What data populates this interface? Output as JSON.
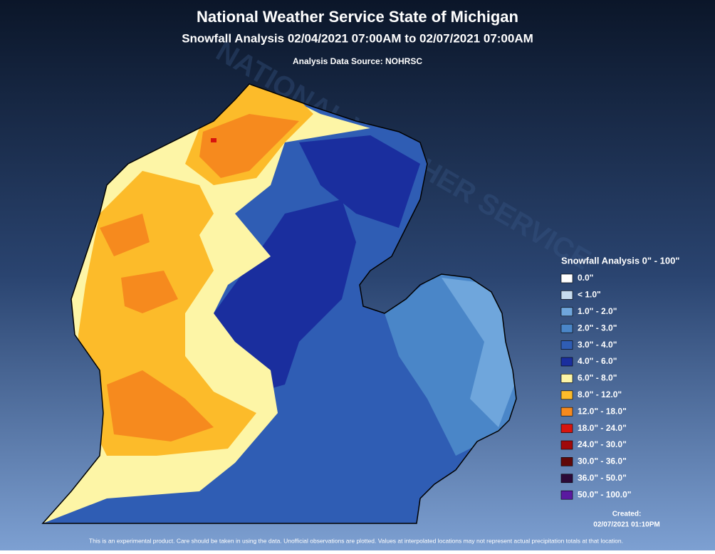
{
  "header": {
    "title": "National Weather Service State of Michigan",
    "subtitle": "Snowfall Analysis 02/04/2021 07:00AM to 02/07/2021 07:00AM",
    "source": "Analysis Data Source: NOHRSC"
  },
  "watermark": "NATIONAL WEATHER SERVICE",
  "legend": {
    "title": "Snowfall Analysis 0\" - 100\"",
    "items": [
      {
        "label": "0.0\"",
        "color": "#ffffff"
      },
      {
        "label": "< 1.0\"",
        "color": "#c8dcee"
      },
      {
        "label": "1.0\" - 2.0\"",
        "color": "#6fa6dc"
      },
      {
        "label": "2.0\" - 3.0\"",
        "color": "#4a86c8"
      },
      {
        "label": "3.0\" - 4.0\"",
        "color": "#2f5db4"
      },
      {
        "label": "4.0\" - 6.0\"",
        "color": "#1a2e9e"
      },
      {
        "label": "6.0\" - 8.0\"",
        "color": "#fdf5a6"
      },
      {
        "label": "8.0\" - 12.0\"",
        "color": "#fcbb2a"
      },
      {
        "label": "12.0\" - 18.0\"",
        "color": "#f68a1e"
      },
      {
        "label": "18.0\" - 24.0\"",
        "color": "#d8140e"
      },
      {
        "label": "24.0\" - 30.0\"",
        "color": "#a00a0a"
      },
      {
        "label": "30.0\" - 36.0\"",
        "color": "#600808"
      },
      {
        "label": "36.0\" - 50.0\"",
        "color": "#2c0a38"
      },
      {
        "label": "50.0\" - 100.0\"",
        "color": "#5a1aa0"
      }
    ]
  },
  "created": {
    "label": "Created:",
    "date": "02/07/2021 01:10PM"
  },
  "disclaimer": "This is an experimental product. Care should be taken in using the data. Unofficial observations are plotted. Values at interpolated locations may not represent actual precipitation totals at that location."
}
